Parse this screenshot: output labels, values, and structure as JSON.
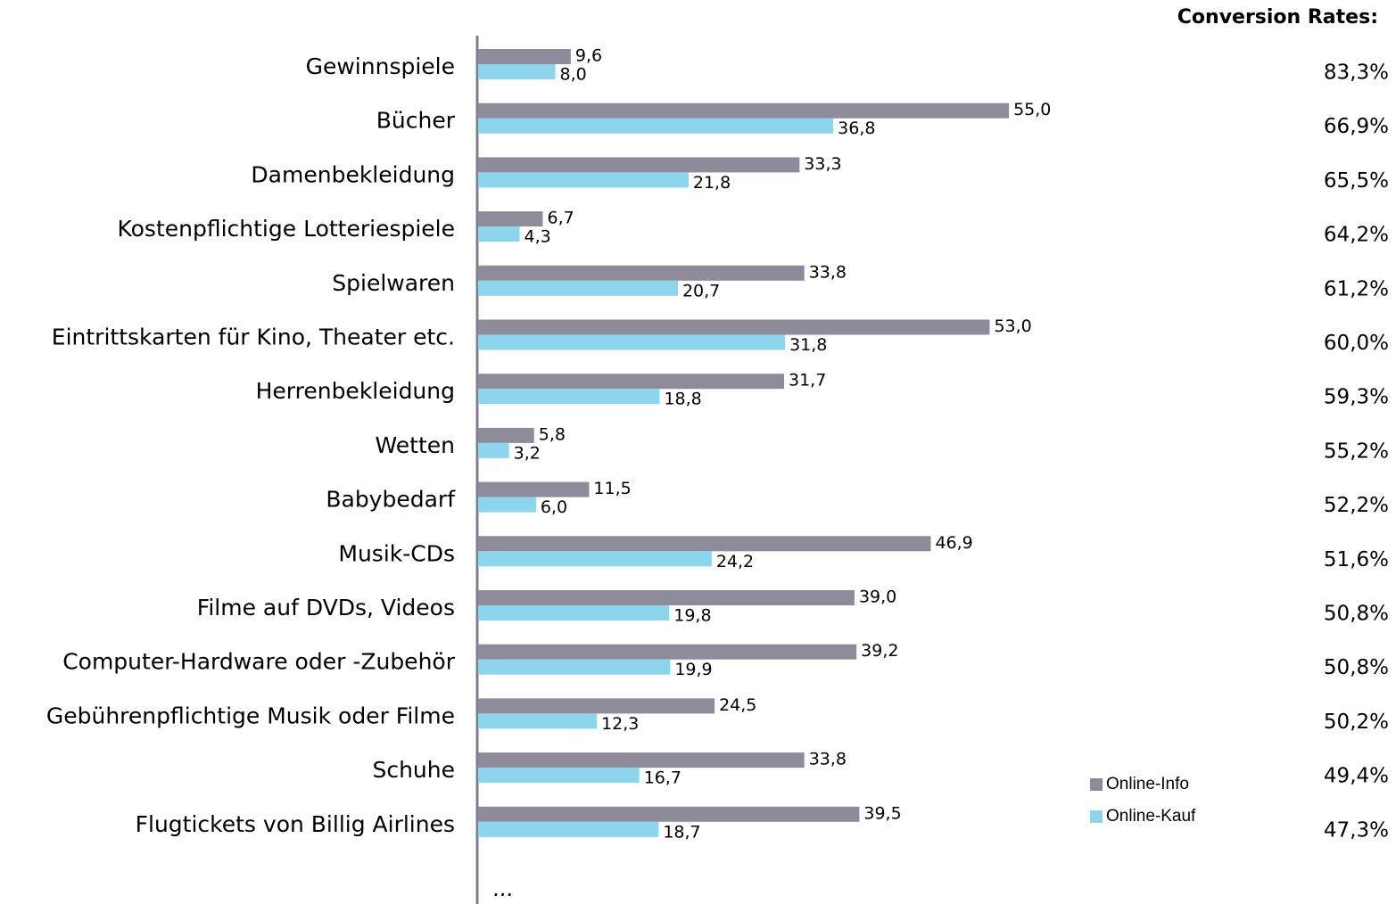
{
  "chart_data": {
    "type": "hbar",
    "categories": [
      "Gewinnspiele",
      "Bücher",
      "Damenbekleidung",
      "Kostenpflichtige Lotteriespiele",
      "Spielwaren",
      "Eintrittskarten für Kino, Theater etc.",
      "Herrenbekleidung",
      "Wetten",
      "Babybedarf",
      "Musik-CDs",
      "Filme auf DVDs, Videos",
      "Computer-Hardware oder -Zubehör",
      "Gebührenpflichtige Musik oder Filme",
      "Schuhe",
      "Flugtickets von Billig Airlines"
    ],
    "series": [
      {
        "name": "Online-Info",
        "color": "#8e8c9a",
        "values": [
          9.6,
          55.0,
          33.3,
          6.7,
          33.8,
          53.0,
          31.7,
          5.8,
          11.5,
          46.9,
          39.0,
          39.2,
          24.5,
          33.8,
          39.5
        ],
        "value_labels": [
          "9,6",
          "55,0",
          "33,3",
          "6,7",
          "33,8",
          "53,0",
          "31,7",
          "5,8",
          "11,5",
          "46,9",
          "39,0",
          "39,2",
          "24,5",
          "33,8",
          "39,5"
        ]
      },
      {
        "name": "Online-Kauf",
        "color": "#8dd5ec",
        "values": [
          8.0,
          36.8,
          21.8,
          4.3,
          20.7,
          31.8,
          18.8,
          3.2,
          6.0,
          24.2,
          19.8,
          19.9,
          12.3,
          16.7,
          18.7
        ],
        "value_labels": [
          "8,0",
          "36,8",
          "21,8",
          "4,3",
          "20,7",
          "31,8",
          "18,8",
          "3,2",
          "6,0",
          "24,2",
          "19,8",
          "19,9",
          "12,3",
          "16,7",
          "18,7"
        ]
      }
    ],
    "conversion_rates": {
      "title": "Conversion Rates:",
      "values": [
        83.3,
        66.9,
        65.5,
        64.2,
        61.2,
        60.0,
        59.3,
        55.2,
        52.2,
        51.6,
        50.8,
        50.8,
        50.2,
        49.4,
        47.3
      ],
      "value_labels": [
        "83,3%",
        "66,9%",
        "65,5%",
        "64,2%",
        "61,2%",
        "60,0%",
        "59,3%",
        "55,2%",
        "52,2%",
        "51,6%",
        "50,8%",
        "50,8%",
        "50,2%",
        "49,4%",
        "47,3%"
      ]
    },
    "annotation": "...",
    "xlim": [
      0,
      60
    ]
  }
}
